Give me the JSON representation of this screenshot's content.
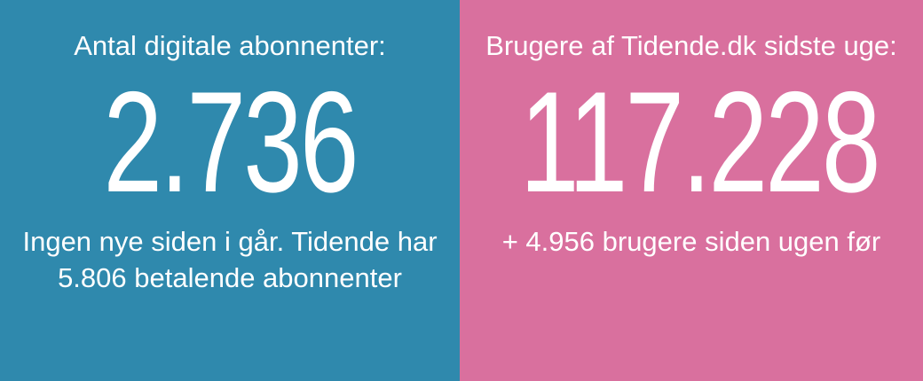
{
  "colors": {
    "left_bg": "#2f89ad",
    "right_bg": "#d9709e",
    "text": "#ffffff"
  },
  "left": {
    "title": "Antal digitale abonnenter:",
    "value": "2.736",
    "note_line1": "Ingen nye siden i går. Tidende har",
    "note_line2": "5.806 betalende abonnenter"
  },
  "right": {
    "title": "Brugere af Tidende.dk sidste uge:",
    "value": "117.228",
    "note_line1": "+ 4.956 brugere siden ugen før"
  }
}
